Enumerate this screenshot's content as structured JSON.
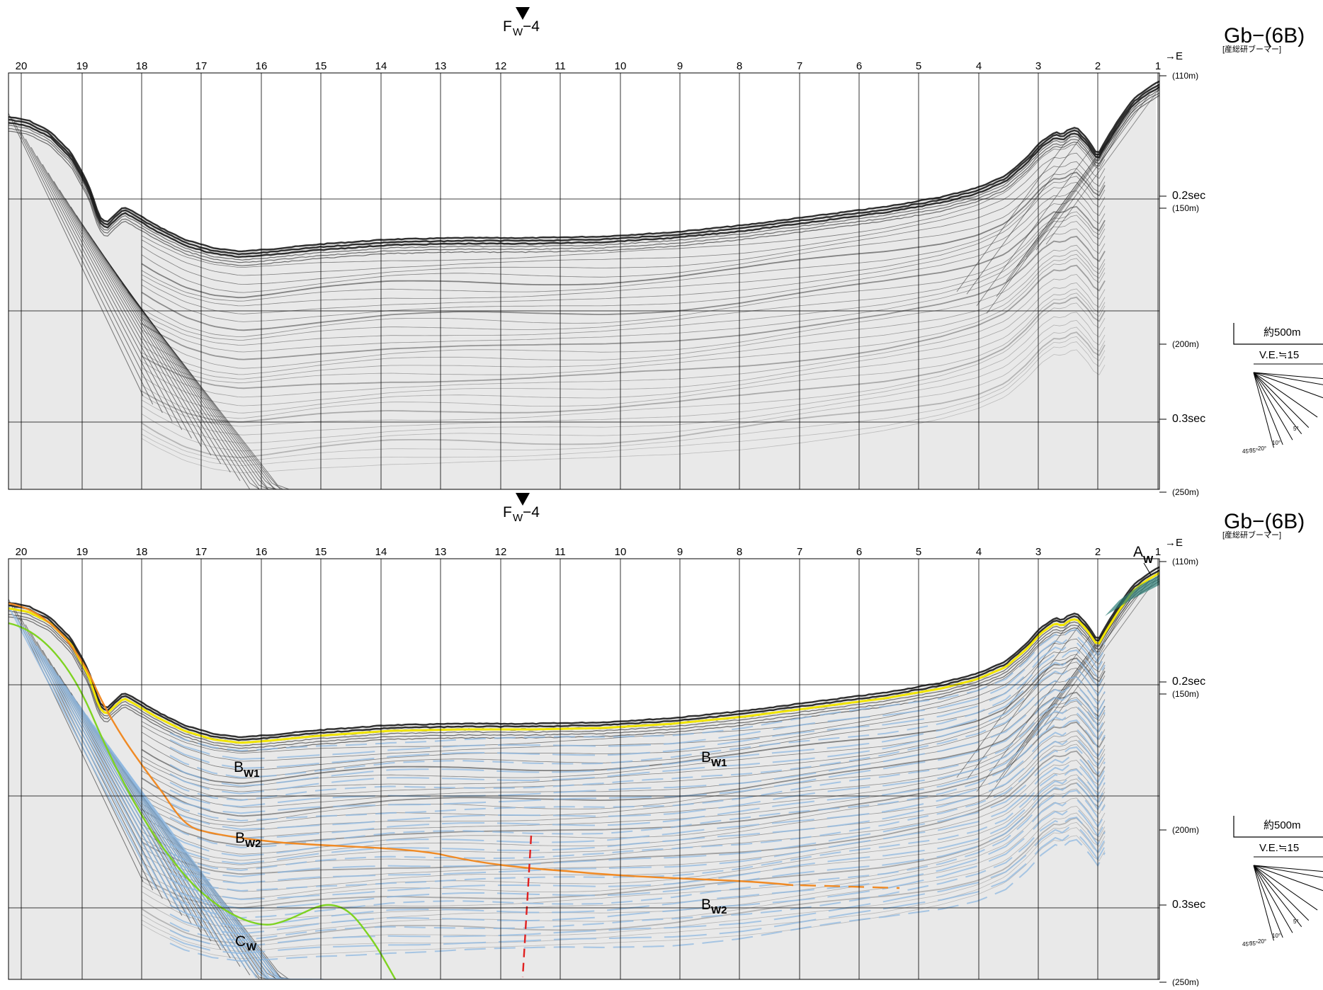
{
  "fault_label": {
    "letter": "F",
    "sub": "W",
    "suffix": "−4"
  },
  "profile_title": "Gb−(6B)",
  "profile_subtitle": "[産総研ブーマー]",
  "direction_label": "→E",
  "shot_points": [
    "20",
    "19",
    "18",
    "17",
    "16",
    "15",
    "14",
    "13",
    "12",
    "11",
    "10",
    "9",
    "8",
    "7",
    "6",
    "5",
    "4",
    "3",
    "2",
    "1"
  ],
  "depth_axis": {
    "d110": "(110m)",
    "t02": "0.2sec",
    "d150": "(150m)",
    "d200": "(200m)",
    "t03": "0.3sec",
    "d250": "(250m)"
  },
  "scale": {
    "length": "約500m",
    "ve": "V.E.≒15",
    "angles": [
      "45°",
      "35°",
      "20°",
      "10°",
      "5°"
    ]
  },
  "units": [
    {
      "main": "B",
      "sub": "W1"
    },
    {
      "main": "B",
      "sub": "W1"
    },
    {
      "main": "B",
      "sub": "W2"
    },
    {
      "main": "B",
      "sub": "W2"
    },
    {
      "main": "C",
      "sub": "W"
    },
    {
      "main": "A",
      "sub": "W"
    }
  ],
  "colors": {
    "horizon_A_top": "#f2e600",
    "horizon_B_base": "#f08a24",
    "horizon_C_top": "#7ed321",
    "fault_line": "#e02020",
    "reflector_trace": "#8fb8e0",
    "seismic_ink": "#1a1a1a"
  }
}
